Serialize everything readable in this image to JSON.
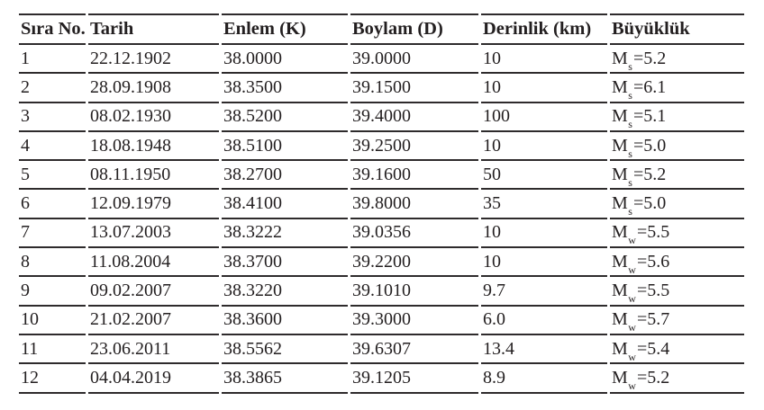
{
  "colors": {
    "text": "#231f20",
    "rule": "#2e2b2c",
    "background": "#ffffff"
  },
  "chart_data": {
    "type": "table",
    "columns": [
      "Sıra No.",
      "Tarih",
      "Enlem (K)",
      "Boylam (D)",
      "Derinlik (km)",
      "Büyüklük"
    ],
    "column_keys": [
      "no",
      "date",
      "lat",
      "lon",
      "depth",
      "mag"
    ],
    "rows": [
      {
        "no": "1",
        "date": "22.12.1902",
        "lat": "38.0000",
        "lon": "39.0000",
        "depth": "10",
        "mag": {
          "base": "M",
          "sub": "s",
          "rest": "=5.2"
        }
      },
      {
        "no": "2",
        "date": "28.09.1908",
        "lat": "38.3500",
        "lon": "39.1500",
        "depth": "10",
        "mag": {
          "base": "M",
          "sub": "s",
          "rest": "=6.1"
        }
      },
      {
        "no": "3",
        "date": "08.02.1930",
        "lat": "38.5200",
        "lon": "39.4000",
        "depth": "100",
        "mag": {
          "base": "M",
          "sub": "s",
          "rest": "=5.1"
        }
      },
      {
        "no": "4",
        "date": "18.08.1948",
        "lat": "38.5100",
        "lon": "39.2500",
        "depth": "10",
        "mag": {
          "base": "M",
          "sub": "s",
          "rest": "=5.0"
        }
      },
      {
        "no": "5",
        "date": "08.11.1950",
        "lat": "38.2700",
        "lon": "39.1600",
        "depth": "50",
        "mag": {
          "base": "M",
          "sub": "s",
          "rest": "=5.2"
        }
      },
      {
        "no": "6",
        "date": "12.09.1979",
        "lat": "38.4100",
        "lon": "39.8000",
        "depth": "35",
        "mag": {
          "base": "M",
          "sub": "s",
          "rest": "=5.0"
        }
      },
      {
        "no": "7",
        "date": "13.07.2003",
        "lat": "38.3222",
        "lon": "39.0356",
        "depth": "10",
        "mag": {
          "base": "M",
          "sub": "w",
          "rest": "=5.5"
        }
      },
      {
        "no": "8",
        "date": "11.08.2004",
        "lat": "38.3700",
        "lon": "39.2200",
        "depth": "10",
        "mag": {
          "base": "M",
          "sub": "w",
          "rest": "=5.6"
        }
      },
      {
        "no": "9",
        "date": "09.02.2007",
        "lat": "38.3220",
        "lon": "39.1010",
        "depth": "9.7",
        "mag": {
          "base": "M",
          "sub": "w",
          "rest": "=5.5"
        }
      },
      {
        "no": "10",
        "date": "21.02.2007",
        "lat": "38.3600",
        "lon": "39.3000",
        "depth": "6.0",
        "mag": {
          "base": "M",
          "sub": "w",
          "rest": "=5.7"
        }
      },
      {
        "no": "11",
        "date": "23.06.2011",
        "lat": "38.5562",
        "lon": "39.6307",
        "depth": "13.4",
        "mag": {
          "base": "M",
          "sub": "w",
          "rest": "=5.4"
        }
      },
      {
        "no": "12",
        "date": "04.04.2019",
        "lat": "38.3865",
        "lon": "39.1205",
        "depth": "8.9",
        "mag": {
          "base": "M",
          "sub": "w",
          "rest": "=5.2"
        }
      }
    ]
  }
}
